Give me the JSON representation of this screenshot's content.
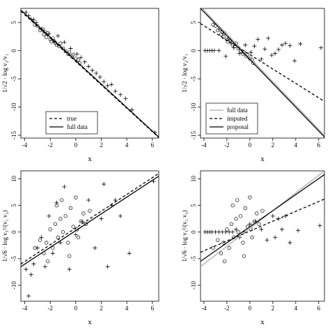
{
  "chart_data": [
    {
      "type": "scatter",
      "xlabel": "x",
      "ylabel": "1/√2 · log v₂/v₁",
      "xlim": [
        -4.3,
        6.5
      ],
      "ylim": [
        -15.5,
        7.5
      ],
      "xticks": [
        -4,
        -2,
        0,
        2,
        4,
        6
      ],
      "yticks": [
        -15,
        -10,
        -5,
        0,
        5
      ],
      "legend": "bottom left",
      "series": [
        {
          "marker": "circle",
          "color": "#000000",
          "x": [
            -3.2,
            -3,
            -2.8,
            -2.6,
            -2.5,
            -2.3,
            -2.2,
            -2,
            -1.9,
            -1.8,
            -1.6,
            -1.5,
            -1.3,
            -1.2,
            -1,
            -0.8,
            -0.6,
            -0.5,
            -0.3,
            -0.2,
            0,
            0.2,
            0.3,
            -1.7,
            -2.4
          ],
          "values": [
            4.6,
            4.4,
            3.6,
            3.8,
            2.9,
            2.4,
            3.1,
            2.0,
            1.6,
            2.2,
            1.4,
            1.0,
            0.8,
            1.3,
            0.4,
            -0.1,
            -0.6,
            -0.3,
            -1.0,
            -0.7,
            -1.4,
            -1.6,
            -2.2,
            1.7,
            3.3
          ]
        },
        {
          "marker": "plus",
          "color": "#000000",
          "x": [
            -3.9,
            -3.7,
            -3.5,
            -3.3,
            -3.1,
            -2.7,
            -2.1,
            -1.4,
            -0.9,
            -0.4,
            0.1,
            0.4,
            0.7,
            1.0,
            1.3,
            1.6,
            1.9,
            2.2,
            2.5,
            2.8,
            3.1,
            3.5,
            3.9,
            4.4,
            6.2
          ],
          "values": [
            6.8,
            6.2,
            5.6,
            5.5,
            5.0,
            3.8,
            3.0,
            2.6,
            1.5,
            0.4,
            -0.6,
            -1.2,
            -2.0,
            -2.8,
            -3.5,
            -4.0,
            -4.7,
            -5.5,
            -6.2,
            -6.0,
            -7.2,
            -7.8,
            -8.5,
            -10.5,
            -14.5
          ]
        }
      ],
      "lines": [
        {
          "name": "true",
          "color": "#000000",
          "dash": true,
          "x": [
            -4.3,
            6.5
          ],
          "values": [
            7.0,
            -15.4
          ]
        },
        {
          "name": "full data",
          "color": "#000000",
          "dash": false,
          "x": [
            -4.3,
            6.5
          ],
          "values": [
            7.2,
            -15.3
          ]
        }
      ]
    },
    {
      "type": "scatter",
      "xlabel": "x",
      "ylabel": "1/√2 · log v₂/v₁",
      "xlim": [
        -4.3,
        6.5
      ],
      "ylim": [
        -15.5,
        7.5
      ],
      "xticks": [
        -4,
        -2,
        0,
        2,
        4,
        6
      ],
      "yticks": [
        -15,
        -10,
        -5,
        0,
        5
      ],
      "legend": "bottom left",
      "series": [
        {
          "marker": "circle",
          "color": "#000000",
          "x": [
            -3.2,
            -3,
            -2.8,
            -2.6,
            -2.5,
            -2.3,
            -2.2,
            -2,
            -1.9,
            -1.8,
            -1.6,
            -1.5,
            -1.3,
            -1.2,
            -1,
            -0.8,
            -0.6,
            -0.5,
            -0.3,
            -0.2,
            0,
            0.2,
            0.3,
            -1.7,
            -2.4
          ],
          "values": [
            4.6,
            4.4,
            3.6,
            3.8,
            2.9,
            2.4,
            3.1,
            2.0,
            1.6,
            2.2,
            1.4,
            1.0,
            0.8,
            1.3,
            0.4,
            -0.1,
            -0.6,
            -0.3,
            -1.0,
            -0.7,
            -1.4,
            -1.6,
            -2.2,
            1.7,
            3.3
          ]
        },
        {
          "marker": "plus",
          "color": "#000000",
          "x": [
            -3.9,
            -3.7,
            -3.5,
            -3.3,
            -3.1,
            -2.7,
            -2.1,
            -1.4,
            -0.9,
            -0.4,
            0.1,
            0.4,
            0.7,
            1.0,
            1.3,
            1.6,
            1.9,
            2.2,
            2.5,
            2.8,
            3.1,
            3.5,
            3.9,
            4.4,
            6.2
          ],
          "values": [
            0,
            0,
            0,
            0,
            0,
            0,
            -1,
            0.5,
            -0.5,
            1.0,
            -0.3,
            0.8,
            2.0,
            -1.5,
            0.3,
            2.2,
            -0.8,
            -0.5,
            0.2,
            1.0,
            1.3,
            0.9,
            -1.8,
            1.2,
            0.5
          ]
        }
      ],
      "lines": [
        {
          "name": "full data",
          "color": "#aaaaaa",
          "dash": false,
          "x": [
            -4.3,
            6.5
          ],
          "values": [
            7.8,
            -15.0
          ]
        },
        {
          "name": "imputed",
          "color": "#000000",
          "dash": true,
          "x": [
            -4.3,
            6.5
          ],
          "values": [
            4.8,
            -9.0
          ]
        },
        {
          "name": "proposal",
          "color": "#000000",
          "dash": false,
          "x": [
            -4.3,
            6.5
          ],
          "values": [
            7.5,
            -15.3
          ]
        }
      ]
    },
    {
      "type": "scatter",
      "xlabel": "x",
      "ylabel": "1/√6 · log v₃²/(v₁ v₂)",
      "xlim": [
        -4.3,
        6.5
      ],
      "ylim": [
        -13,
        11.5
      ],
      "xticks": [
        -4,
        -2,
        0,
        2,
        4,
        6
      ],
      "yticks": [
        -10,
        -5,
        0,
        5,
        10
      ],
      "series": [
        {
          "marker": "circle",
          "color": "#000000",
          "x": [
            -3.2,
            -2.8,
            -2.5,
            -2.3,
            -2,
            -1.8,
            -1.6,
            -1.4,
            -1.2,
            -1,
            -0.8,
            -0.6,
            -0.4,
            -0.2,
            0,
            0.2,
            0.4,
            0.6,
            -1.5,
            -0.5,
            0.1,
            -2.2,
            -1.1,
            0.8,
            1.1
          ],
          "values": [
            -3,
            -1.5,
            -4,
            -2,
            0.5,
            -3,
            1.5,
            -1,
            2.5,
            0,
            3,
            -2,
            4.5,
            1,
            6.5,
            -1,
            2,
            3.5,
            5,
            -4.5,
            0.5,
            -5.5,
            6,
            1.5,
            4
          ]
        },
        {
          "marker": "plus",
          "color": "#000000",
          "x": [
            -3.9,
            -3.7,
            -3.5,
            -3.3,
            -3,
            -2.7,
            -2.4,
            -2.1,
            -1.8,
            -1.5,
            -1.2,
            -0.9,
            -0.5,
            0,
            0.5,
            1,
            1.5,
            2,
            2.2,
            2.5,
            2.8,
            3.1,
            3.5,
            4.2,
            6.1
          ],
          "values": [
            -7,
            -12,
            -8,
            -6,
            -3,
            -1,
            -6.5,
            3,
            -4,
            5.5,
            -2,
            8.5,
            -7,
            -0.5,
            2,
            6,
            -3,
            2.5,
            9,
            -6.5,
            5,
            6,
            3,
            -4,
            9.5
          ]
        }
      ],
      "lines": [
        {
          "color": "#000000",
          "dash": true,
          "x": [
            -4.3,
            6.5
          ],
          "values": [
            -6.0,
            11.0
          ]
        },
        {
          "color": "#000000",
          "dash": false,
          "x": [
            -4.3,
            6.5
          ],
          "values": [
            -6.5,
            10.5
          ]
        }
      ]
    },
    {
      "type": "scatter",
      "xlabel": "x",
      "ylabel": "1/√6 · log v₃²/(v₁ v₂)",
      "xlim": [
        -4.3,
        6.5
      ],
      "ylim": [
        -13,
        11.5
      ],
      "xticks": [
        -4,
        -2,
        0,
        2,
        4,
        6
      ],
      "yticks": [
        -10,
        -5,
        0,
        5,
        10
      ],
      "series": [
        {
          "marker": "circle",
          "color": "#000000",
          "x": [
            -3.2,
            -2.8,
            -2.5,
            -2.3,
            -2,
            -1.8,
            -1.6,
            -1.4,
            -1.2,
            -1,
            -0.8,
            -0.6,
            -0.4,
            -0.2,
            0,
            0.2,
            0.4,
            0.6,
            -1.5,
            -0.5,
            0.1,
            -2.2,
            -1.1,
            0.8,
            1.1
          ],
          "values": [
            -3,
            -1.5,
            -4,
            -2,
            0.5,
            -3,
            1.5,
            -1,
            2.5,
            0,
            3,
            -2,
            4.5,
            1,
            6.5,
            -1,
            2,
            3.5,
            5,
            -4.5,
            0.5,
            -5.5,
            6,
            1.5,
            4
          ]
        },
        {
          "marker": "plus",
          "color": "#000000",
          "x": [
            -3.9,
            -3.7,
            -3.5,
            -3.3,
            -3,
            -2.7,
            -2.4,
            -2.1,
            -1.8,
            -1.5,
            -1.2,
            -0.9,
            -0.5,
            0,
            0.5,
            1,
            1.5,
            2,
            2.2,
            2.5,
            2.8,
            3.1,
            3.5,
            4.2,
            6.1
          ],
          "values": [
            0,
            0,
            0,
            0,
            0,
            0,
            0,
            0,
            0,
            0,
            0.5,
            -1,
            0,
            1.5,
            2,
            0.5,
            -1.5,
            3,
            -1,
            2.5,
            0.5,
            3,
            -2,
            0.3,
            1.2
          ]
        }
      ],
      "lines": [
        {
          "color": "#aaaaaa",
          "dash": false,
          "x": [
            -4.3,
            6.5
          ],
          "values": [
            -6.5,
            11.5
          ]
        },
        {
          "color": "#000000",
          "dash": true,
          "x": [
            -4.3,
            6.5
          ],
          "values": [
            -3.8,
            6.2
          ]
        },
        {
          "color": "#000000",
          "dash": false,
          "x": [
            -4.3,
            6.5
          ],
          "values": [
            -5.5,
            10.8
          ]
        }
      ]
    }
  ]
}
